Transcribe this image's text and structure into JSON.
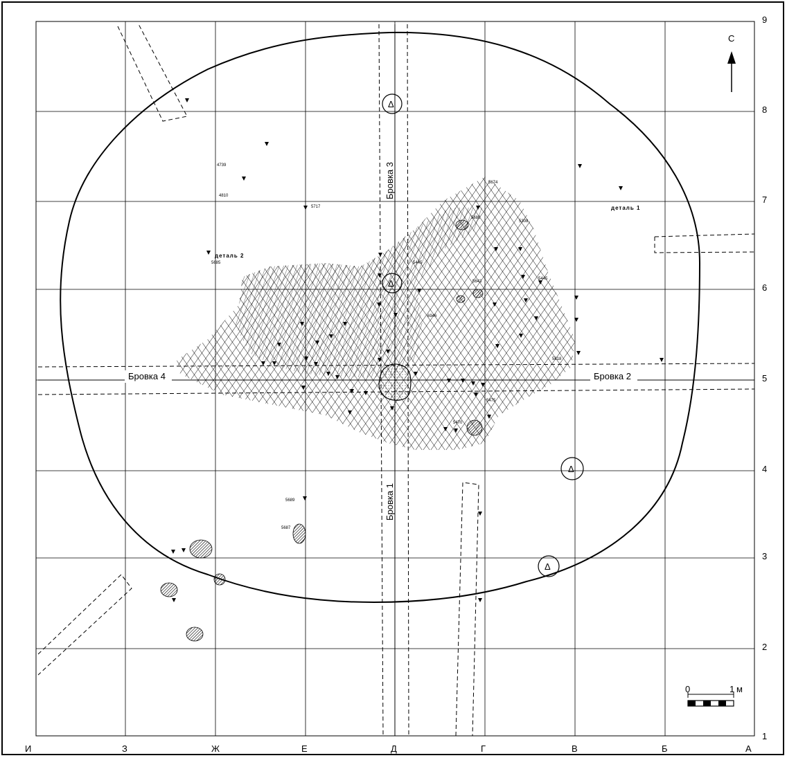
{
  "columns": [
    "И",
    "З",
    "Ж",
    "Е",
    "Д",
    "Г",
    "В",
    "Б",
    "А"
  ],
  "rows": [
    "9",
    "8",
    "7",
    "6",
    "5",
    "4",
    "3",
    "2",
    "1"
  ],
  "north": "С",
  "baulks": {
    "bavka1": "Бровка 1",
    "bavka2": "Бровка 2",
    "bavka3": "Бровка 3",
    "bavka4": "Бровка 4"
  },
  "details": {
    "d1": "деталь 1",
    "d2": "деталь 2"
  },
  "find_numbers": [
    "4739",
    "4810",
    "5717",
    "5685",
    "5674",
    "5680",
    "5308",
    "5445",
    "5643",
    "6946",
    "5445",
    "5818",
    "5475",
    "5470",
    "5689",
    "5687"
  ],
  "scale": {
    "zero": "0",
    "one": "1",
    "unit": "м"
  },
  "markers": [
    "Δ",
    "Δ",
    "Δ",
    "Δ"
  ]
}
